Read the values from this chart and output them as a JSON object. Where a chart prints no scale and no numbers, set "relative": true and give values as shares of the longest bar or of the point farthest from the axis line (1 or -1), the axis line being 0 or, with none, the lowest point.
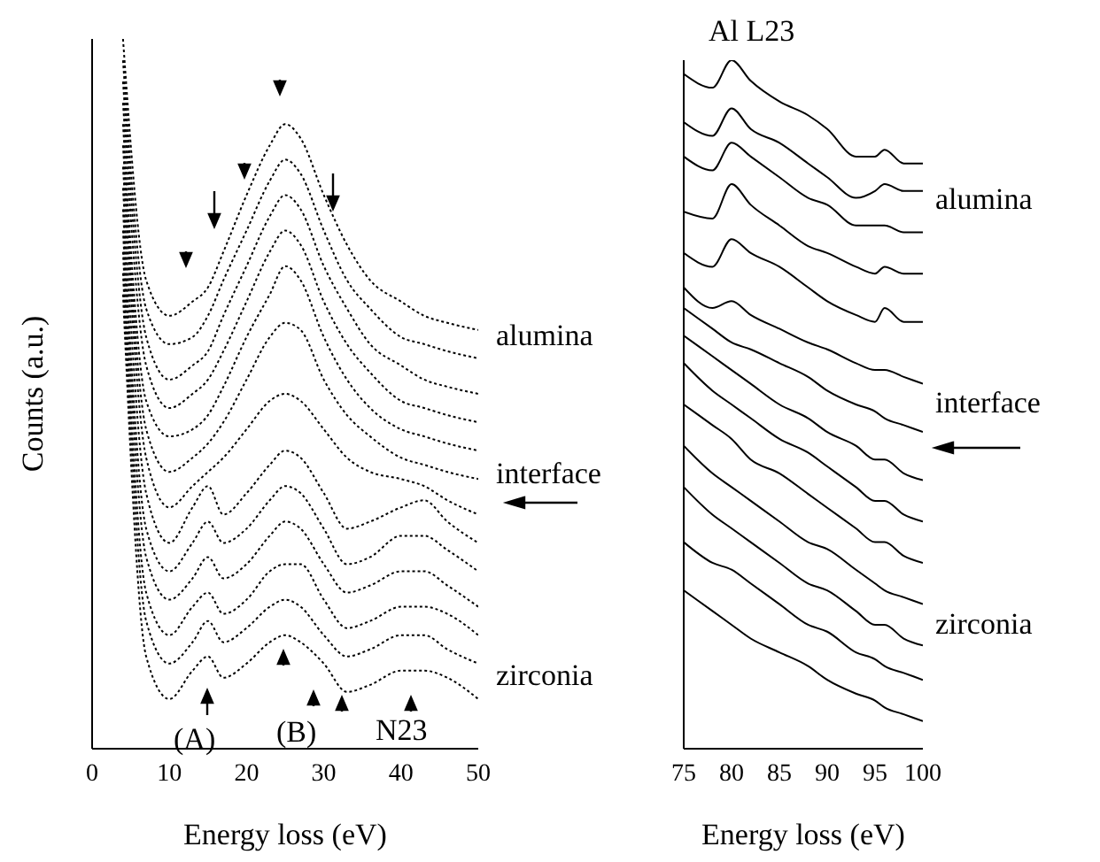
{
  "chart_data": [
    {
      "type": "line",
      "relative": true,
      "xlabel": "Energy loss (eV)",
      "ylabel": "Counts (a.u.)",
      "line_style": "dotted",
      "marker": "none",
      "legend": false,
      "grid": false,
      "x": [
        4,
        7,
        10,
        13,
        15,
        17,
        20,
        23,
        25,
        27,
        30,
        33,
        36,
        40,
        43,
        46,
        50
      ],
      "xlim": [
        0,
        50
      ],
      "xticks": [
        0,
        10,
        20,
        30,
        40,
        50
      ],
      "series": [
        {
          "color": "#000000",
          "values": [
            1.0,
            0.66,
            0.61,
            0.63,
            0.65,
            0.7,
            0.78,
            0.85,
            0.88,
            0.86,
            0.78,
            0.71,
            0.66,
            0.63,
            0.61,
            0.6,
            0.59
          ]
        },
        {
          "color": "#000000",
          "values": [
            0.97,
            0.62,
            0.57,
            0.58,
            0.61,
            0.66,
            0.73,
            0.8,
            0.83,
            0.81,
            0.73,
            0.66,
            0.62,
            0.58,
            0.57,
            0.56,
            0.55
          ]
        },
        {
          "color": "#000000",
          "values": [
            0.94,
            0.58,
            0.52,
            0.54,
            0.56,
            0.61,
            0.68,
            0.75,
            0.78,
            0.76,
            0.68,
            0.62,
            0.57,
            0.54,
            0.52,
            0.51,
            0.5
          ]
        },
        {
          "color": "#000000",
          "values": [
            0.91,
            0.54,
            0.48,
            0.5,
            0.52,
            0.56,
            0.63,
            0.7,
            0.73,
            0.71,
            0.63,
            0.57,
            0.53,
            0.49,
            0.48,
            0.47,
            0.46
          ]
        },
        {
          "color": "#000000",
          "values": [
            0.88,
            0.49,
            0.44,
            0.45,
            0.47,
            0.51,
            0.58,
            0.64,
            0.68,
            0.66,
            0.58,
            0.52,
            0.48,
            0.45,
            0.44,
            0.43,
            0.42
          ]
        },
        {
          "color": "#000000",
          "values": [
            0.85,
            0.45,
            0.39,
            0.41,
            0.43,
            0.46,
            0.52,
            0.58,
            0.6,
            0.59,
            0.52,
            0.47,
            0.44,
            0.41,
            0.4,
            0.39,
            0.38
          ]
        },
        {
          "color": "#000000",
          "values": [
            0.82,
            0.41,
            0.34,
            0.37,
            0.39,
            0.41,
            0.45,
            0.49,
            0.5,
            0.49,
            0.45,
            0.41,
            0.39,
            0.38,
            0.37,
            0.35,
            0.33
          ]
        },
        {
          "color": "#000000",
          "values": [
            0.79,
            0.36,
            0.29,
            0.34,
            0.37,
            0.33,
            0.36,
            0.4,
            0.42,
            0.41,
            0.36,
            0.31,
            0.32,
            0.34,
            0.35,
            0.32,
            0.29
          ]
        },
        {
          "color": "#000000",
          "values": [
            0.76,
            0.31,
            0.25,
            0.29,
            0.32,
            0.29,
            0.31,
            0.35,
            0.37,
            0.36,
            0.31,
            0.26,
            0.27,
            0.3,
            0.3,
            0.28,
            0.25
          ]
        },
        {
          "color": "#000000",
          "values": [
            0.73,
            0.27,
            0.21,
            0.24,
            0.27,
            0.24,
            0.26,
            0.3,
            0.32,
            0.31,
            0.26,
            0.22,
            0.23,
            0.25,
            0.25,
            0.23,
            0.2
          ]
        },
        {
          "color": "#000000",
          "values": [
            0.7,
            0.22,
            0.16,
            0.2,
            0.22,
            0.19,
            0.21,
            0.25,
            0.26,
            0.26,
            0.21,
            0.17,
            0.18,
            0.2,
            0.2,
            0.19,
            0.16
          ]
        },
        {
          "color": "#000000",
          "values": [
            0.67,
            0.18,
            0.12,
            0.15,
            0.18,
            0.15,
            0.17,
            0.2,
            0.21,
            0.2,
            0.16,
            0.13,
            0.14,
            0.16,
            0.16,
            0.14,
            0.12
          ]
        },
        {
          "color": "#000000",
          "values": [
            0.64,
            0.13,
            0.07,
            0.11,
            0.13,
            0.1,
            0.12,
            0.15,
            0.16,
            0.15,
            0.12,
            0.08,
            0.09,
            0.11,
            0.11,
            0.1,
            0.07
          ]
        }
      ],
      "annotations": [
        "alumina",
        "interface",
        "zirconia",
        "(A)",
        "(B)",
        "N23"
      ]
    },
    {
      "type": "line",
      "relative": true,
      "title": "Al L23",
      "xlabel": "Energy loss (eV)",
      "line_style": "solid",
      "marker": "none",
      "legend": false,
      "grid": false,
      "x": [
        75,
        78,
        80,
        82,
        85,
        88,
        90,
        93,
        95,
        96,
        98,
        100
      ],
      "xlim": [
        75,
        100
      ],
      "xticks": [
        75,
        80,
        85,
        90,
        95,
        100
      ],
      "series": [
        {
          "color": "#000000",
          "values": [
            0.98,
            0.96,
            1.0,
            0.97,
            0.94,
            0.92,
            0.9,
            0.86,
            0.86,
            0.87,
            0.85,
            0.85
          ]
        },
        {
          "color": "#000000",
          "values": [
            0.91,
            0.89,
            0.93,
            0.9,
            0.88,
            0.85,
            0.83,
            0.8,
            0.81,
            0.82,
            0.81,
            0.81
          ]
        },
        {
          "color": "#000000",
          "values": [
            0.86,
            0.84,
            0.88,
            0.86,
            0.83,
            0.8,
            0.79,
            0.76,
            0.76,
            0.76,
            0.75,
            0.75
          ]
        },
        {
          "color": "#000000",
          "values": [
            0.78,
            0.77,
            0.82,
            0.79,
            0.76,
            0.73,
            0.72,
            0.7,
            0.69,
            0.7,
            0.69,
            0.69
          ]
        },
        {
          "color": "#000000",
          "values": [
            0.72,
            0.7,
            0.74,
            0.72,
            0.7,
            0.67,
            0.65,
            0.63,
            0.62,
            0.64,
            0.62,
            0.62
          ]
        },
        {
          "color": "#000000",
          "values": [
            0.67,
            0.64,
            0.65,
            0.63,
            0.61,
            0.59,
            0.58,
            0.56,
            0.55,
            0.55,
            0.54,
            0.53
          ]
        },
        {
          "color": "#000000",
          "values": [
            0.64,
            0.61,
            0.59,
            0.58,
            0.56,
            0.54,
            0.52,
            0.5,
            0.49,
            0.48,
            0.47,
            0.46
          ]
        },
        {
          "color": "#000000",
          "values": [
            0.6,
            0.57,
            0.55,
            0.53,
            0.5,
            0.48,
            0.46,
            0.44,
            0.42,
            0.42,
            0.4,
            0.39
          ]
        },
        {
          "color": "#000000",
          "values": [
            0.56,
            0.52,
            0.5,
            0.48,
            0.45,
            0.43,
            0.41,
            0.38,
            0.36,
            0.36,
            0.34,
            0.33
          ]
        },
        {
          "color": "#000000",
          "values": [
            0.5,
            0.47,
            0.45,
            0.42,
            0.4,
            0.37,
            0.35,
            0.32,
            0.3,
            0.3,
            0.28,
            0.27
          ]
        },
        {
          "color": "#000000",
          "values": [
            0.44,
            0.4,
            0.38,
            0.36,
            0.33,
            0.3,
            0.29,
            0.26,
            0.24,
            0.23,
            0.22,
            0.21
          ]
        },
        {
          "color": "#000000",
          "values": [
            0.38,
            0.34,
            0.32,
            0.3,
            0.27,
            0.24,
            0.23,
            0.2,
            0.18,
            0.18,
            0.16,
            0.15
          ]
        },
        {
          "color": "#000000",
          "values": [
            0.3,
            0.27,
            0.26,
            0.24,
            0.21,
            0.18,
            0.17,
            0.14,
            0.13,
            0.12,
            0.11,
            0.1
          ]
        },
        {
          "color": "#000000",
          "values": [
            0.23,
            0.2,
            0.18,
            0.16,
            0.14,
            0.12,
            0.1,
            0.08,
            0.07,
            0.06,
            0.05,
            0.04
          ]
        }
      ],
      "annotations": [
        "alumina",
        "interface",
        "zirconia"
      ]
    }
  ]
}
